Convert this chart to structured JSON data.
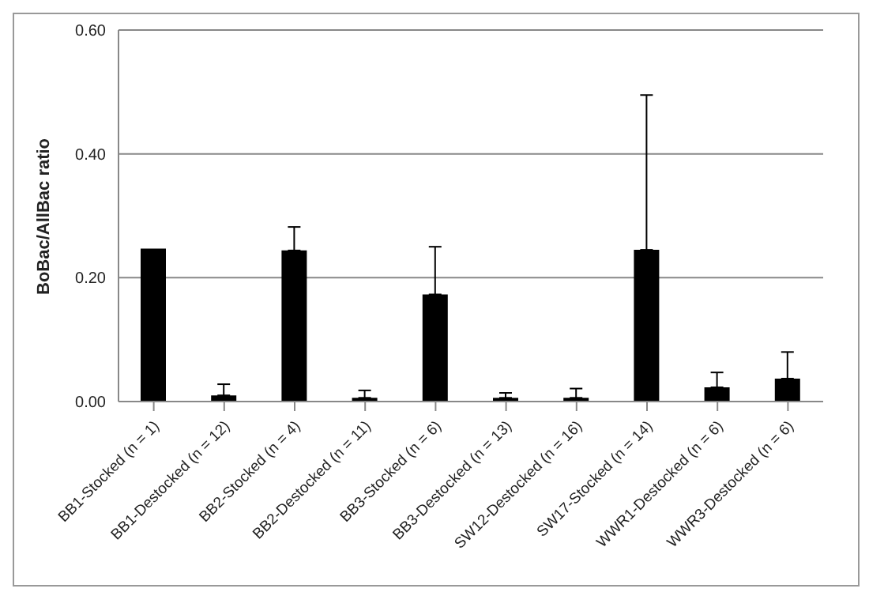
{
  "chart_data": {
    "type": "bar",
    "ylabel": "BoBac/AllBac ratio",
    "categories": [
      "BB1-Stocked (n = 1)",
      "BB1-Destocked (n = 12)",
      "BB2-Stocked (n = 4)",
      "BB2-Destocked (n = 11)",
      "BB3-Stocked (n = 6)",
      "BB3-Destocked (n = 13)",
      "SW12-Destocked (n = 16)",
      "SW17-Stocked (n = 14)",
      "WWR1-Destocked (n = 6)",
      "WWR3-Destocked (n = 6)"
    ],
    "values": [
      0.247,
      0.01,
      0.244,
      0.006,
      0.173,
      0.006,
      0.006,
      0.245,
      0.023,
      0.037
    ],
    "errors": [
      null,
      [
        0.01,
        0.028
      ],
      [
        0.244,
        0.282
      ],
      [
        0.006,
        0.018
      ],
      [
        0.173,
        0.25
      ],
      [
        0.006,
        0.014
      ],
      [
        0.006,
        0.021
      ],
      [
        0.245,
        0.495
      ],
      [
        0.023,
        0.047
      ],
      [
        0.037,
        0.08
      ]
    ],
    "color": "#000000",
    "ylim": [
      0,
      0.6
    ],
    "yticks": [
      {
        "value": 0,
        "label": "0.00"
      },
      {
        "value": 0.2,
        "label": "0.20"
      },
      {
        "value": 0.4,
        "label": "0.40"
      },
      {
        "value": 0.6,
        "label": "0.60"
      }
    ],
    "grid": "y"
  }
}
